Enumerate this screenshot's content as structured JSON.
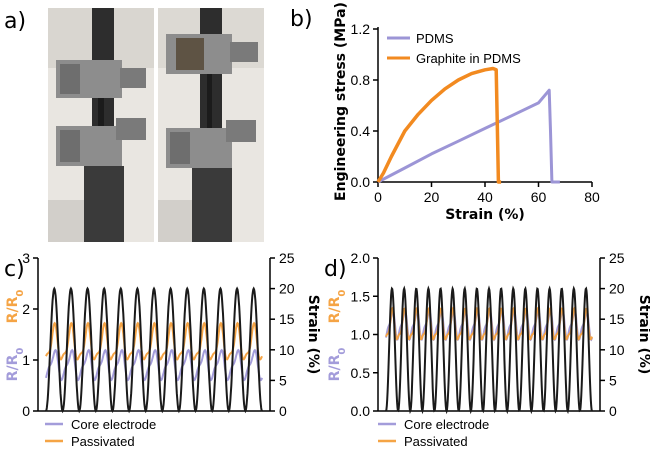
{
  "panels": {
    "a": {
      "label": "a)"
    },
    "b": {
      "label": "b)"
    },
    "c": {
      "label": "c)"
    },
    "d": {
      "label": "d)"
    }
  },
  "colors": {
    "pdms": "#9c95d6",
    "graphite": "#f28a20",
    "core": "#a39cda",
    "passivated": "#f5a445",
    "strain": "#1a1a1a",
    "photo_background": "#e7e4df",
    "photo_frame": "#2b2b2b",
    "photo_clamp": "#8c8c8c"
  },
  "photo": {
    "description_icon": "tensile-test-photo-icon"
  },
  "chart_data": [
    {
      "panel": "b",
      "type": "line",
      "xlabel": "Strain (%)",
      "ylabel": "Engineering stress (MPa)",
      "xlim": [
        0,
        80
      ],
      "ylim": [
        0,
        1.2
      ],
      "xticks": [
        0,
        20,
        40,
        60,
        80
      ],
      "yticks": [
        0.0,
        0.4,
        0.8,
        1.2
      ],
      "ytick_labels": [
        "0.0",
        "0.4",
        "0.8",
        "1.2"
      ],
      "legend_position": "top-left",
      "series": [
        {
          "name": "PDMS",
          "color": "#9c95d6",
          "x": [
            0,
            5,
            10,
            20,
            30,
            40,
            50,
            60,
            64,
            64.5,
            65,
            66,
            68
          ],
          "y": [
            0,
            0.055,
            0.11,
            0.22,
            0.32,
            0.42,
            0.52,
            0.62,
            0.72,
            0.4,
            0.0,
            0.0,
            0.0
          ]
        },
        {
          "name": "Graphite in PDMS",
          "color": "#f28a20",
          "x": [
            0,
            2,
            5,
            10,
            15,
            20,
            25,
            30,
            35,
            40,
            43,
            44.2,
            44.6,
            45,
            46
          ],
          "y": [
            0,
            0.07,
            0.2,
            0.4,
            0.53,
            0.64,
            0.73,
            0.8,
            0.85,
            0.88,
            0.89,
            0.88,
            0.45,
            0.0,
            0.0
          ]
        }
      ]
    },
    {
      "panel": "c",
      "type": "line",
      "ylabel_left_core": "R/R₀",
      "ylabel_left_passivated": "R/R₀",
      "ylabel_right": "Strain (%)",
      "ylim_left": [
        0,
        3
      ],
      "yticks_left": [
        0,
        1,
        2,
        3
      ],
      "ylim_right": [
        0,
        25
      ],
      "yticks_right": [
        0,
        5,
        10,
        15,
        20,
        25
      ],
      "cycles": 13,
      "legend_position": "bottom-left",
      "series": [
        {
          "name": "Core electrode",
          "color": "#a39cda",
          "axis": "left",
          "mean": 0.9,
          "amplitude": 0.25
        },
        {
          "name": "Passivated",
          "color": "#f5a445",
          "axis": "left",
          "mean": 1.3,
          "amplitude": 0.32
        },
        {
          "axis": "right",
          "color": "#1a1a1a",
          "min": 0,
          "max": 20
        }
      ]
    },
    {
      "panel": "d",
      "type": "line",
      "ylabel_left_core": "R/R₀",
      "ylabel_left_passivated": "R/R₀",
      "ylabel_right": "Strain (%)",
      "ylim_left": [
        0,
        2
      ],
      "yticks_left": [
        0.0,
        0.5,
        1.0,
        1.5,
        2.0
      ],
      "ytick_labels_left": [
        "0.0",
        "0.5",
        "1.0",
        "1.5",
        "2.0"
      ],
      "ylim_right": [
        0,
        25
      ],
      "yticks_right": [
        0,
        5,
        10,
        15,
        20,
        25
      ],
      "cycles": 17,
      "legend_position": "bottom-left",
      "series": [
        {
          "name": "Core electrode",
          "color": "#a39cda",
          "axis": "left",
          "mean": 1.12,
          "amplitude": 0.16
        },
        {
          "name": "Passivated",
          "color": "#f5a445",
          "axis": "left",
          "mean": 1.1,
          "amplitude": 0.18
        },
        {
          "axis": "right",
          "color": "#1a1a1a",
          "min": 0,
          "max": 20
        }
      ]
    }
  ]
}
